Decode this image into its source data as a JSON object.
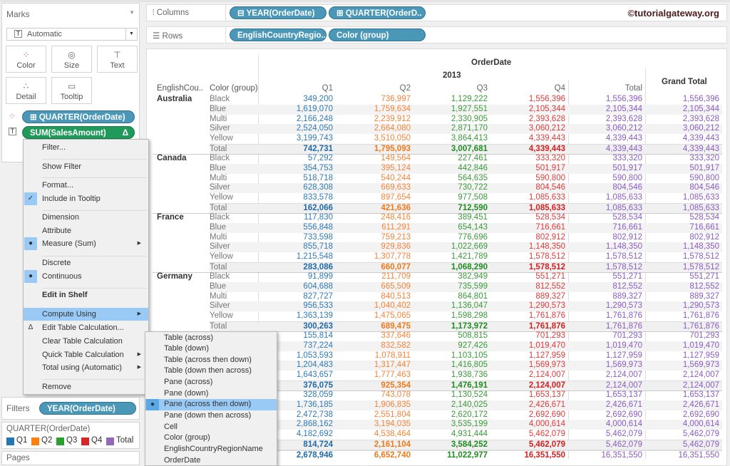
{
  "marks": {
    "title": "Marks",
    "type": "Automatic",
    "buttons": [
      "Color",
      "Size",
      "Text",
      "Detail",
      "Tooltip"
    ],
    "pills": [
      "QUARTER(OrderDate)",
      "SUM(SalesAmount)"
    ],
    "delta": "Δ"
  },
  "filters": {
    "title": "Filters",
    "pill": "YEAR(OrderDate)"
  },
  "legend": {
    "title": "QUARTER(OrderDate)",
    "items": [
      {
        "label": "Q1",
        "color": "#1f77b4"
      },
      {
        "label": "Q2",
        "color": "#ff7f0e"
      },
      {
        "label": "Q3",
        "color": "#2ca02c"
      },
      {
        "label": "Q4",
        "color": "#d62728"
      },
      {
        "label": "Total",
        "color": "#9467bd"
      }
    ]
  },
  "pages": {
    "title": "Pages"
  },
  "shelves": {
    "columns_label": "Columns",
    "columns": [
      "YEAR(OrderDate)",
      "QUARTER(OrderD.."
    ],
    "rows_label": "Rows",
    "rows": [
      "EnglishCountryRegio..",
      "Color (group)"
    ]
  },
  "watermark": "©tutorialgateway.org",
  "table": {
    "header": {
      "orderdate": "OrderDate",
      "year": "2013",
      "grand_total": "Grand Total",
      "country_col": "EnglishCou..",
      "color_col": "Color (group)",
      "cols": [
        "Q1",
        "Q2",
        "Q3",
        "Q4",
        "Total"
      ]
    },
    "colors": [
      "#2f7ab7",
      "#f5843a",
      "#3a9a3a",
      "#e03a3a",
      "#8a5cc0",
      "#8a5cc0"
    ],
    "total_colors": [
      "#1f6aa8",
      "#f07a1a",
      "#1f8c1f",
      "#d41f1f",
      "#8a5cc0",
      "#8a5cc0"
    ],
    "groups": [
      {
        "country": "Australia",
        "rows": [
          [
            "Black",
            "349,200",
            "736,997",
            "1,129,222",
            "1,556,396",
            "1,556,396",
            "1,556,396"
          ],
          [
            "Blue",
            "1,619,070",
            "1,759,634",
            "1,927,551",
            "2,105,344",
            "2,105,344",
            "2,105,344"
          ],
          [
            "Multi",
            "2,166,248",
            "2,239,912",
            "2,330,905",
            "2,393,628",
            "2,393,628",
            "2,393,628"
          ],
          [
            "Silver",
            "2,524,050",
            "2,664,080",
            "2,871,170",
            "3,060,212",
            "3,060,212",
            "3,060,212"
          ],
          [
            "Yellow",
            "3,199,743",
            "3,510,050",
            "3,864,413",
            "4,339,443",
            "4,339,443",
            "4,339,443"
          ],
          [
            "Total",
            "742,731",
            "1,795,093",
            "3,007,681",
            "4,339,443",
            "4,339,443",
            "4,339,443"
          ]
        ]
      },
      {
        "country": "Canada",
        "rows": [
          [
            "Black",
            "57,292",
            "149,564",
            "227,461",
            "333,320",
            "333,320",
            "333,320"
          ],
          [
            "Blue",
            "354,753",
            "395,124",
            "442,846",
            "501,917",
            "501,917",
            "501,917"
          ],
          [
            "Multi",
            "518,718",
            "540,244",
            "564,635",
            "590,800",
            "590,800",
            "590,800"
          ],
          [
            "Silver",
            "628,308",
            "669,633",
            "730,722",
            "804,546",
            "804,546",
            "804,546"
          ],
          [
            "Yellow",
            "833,578",
            "897,654",
            "977,508",
            "1,085,633",
            "1,085,633",
            "1,085,633"
          ],
          [
            "Total",
            "162,066",
            "421,636",
            "712,590",
            "1,085,633",
            "1,085,633",
            "1,085,633"
          ]
        ]
      },
      {
        "country": "France",
        "rows": [
          [
            "Black",
            "117,830",
            "248,416",
            "389,451",
            "528,534",
            "528,534",
            "528,534"
          ],
          [
            "Blue",
            "556,848",
            "611,291",
            "654,143",
            "716,661",
            "716,661",
            "716,661"
          ],
          [
            "Multi",
            "733,598",
            "759,213",
            "776,696",
            "802,912",
            "802,912",
            "802,912"
          ],
          [
            "Silver",
            "855,718",
            "929,836",
            "1,022,669",
            "1,148,350",
            "1,148,350",
            "1,148,350"
          ],
          [
            "Yellow",
            "1,215,548",
            "1,307,778",
            "1,421,789",
            "1,578,512",
            "1,578,512",
            "1,578,512"
          ],
          [
            "Total",
            "283,086",
            "660,077",
            "1,068,290",
            "1,578,512",
            "1,578,512",
            "1,578,512"
          ]
        ]
      },
      {
        "country": "Germany",
        "rows": [
          [
            "Black",
            "91,899",
            "211,709",
            "382,949",
            "551,271",
            "551,271",
            "551,271"
          ],
          [
            "Blue",
            "604,688",
            "665,509",
            "735,599",
            "812,552",
            "812,552",
            "812,552"
          ],
          [
            "Multi",
            "827,727",
            "840,513",
            "864,801",
            "889,327",
            "889,327",
            "889,327"
          ],
          [
            "Silver",
            "956,533",
            "1,040,402",
            "1,136,047",
            "1,290,573",
            "1,290,573",
            "1,290,573"
          ],
          [
            "Yellow",
            "1,363,139",
            "1,475,065",
            "1,598,298",
            "1,761,876",
            "1,761,876",
            "1,761,876"
          ],
          [
            "Total",
            "300,263",
            "689,475",
            "1,173,972",
            "1,761,876",
            "1,761,876",
            "1,761,876"
          ]
        ]
      },
      {
        "country": "",
        "rows": [
          [
            "",
            "155,814",
            "337,646",
            "508,815",
            "701,293",
            "701,293",
            "701,293"
          ],
          [
            "",
            "737,224",
            "832,582",
            "927,426",
            "1,019,470",
            "1,019,470",
            "1,019,470"
          ],
          [
            "",
            "1,053,593",
            "1,078,911",
            "1,103,105",
            "1,127,959",
            "1,127,959",
            "1,127,959"
          ],
          [
            "",
            "1,204,483",
            "1,317,447",
            "1,416,805",
            "1,569,973",
            "1,569,973",
            "1,569,973"
          ],
          [
            "",
            "1,643,657",
            "1,777,463",
            "1,938,736",
            "2,124,007",
            "2,124,007",
            "2,124,007"
          ],
          [
            "",
            "376,075",
            "925,354",
            "1,476,191",
            "2,124,007",
            "2,124,007",
            "2,124,007"
          ]
        ]
      },
      {
        "country": "",
        "rows": [
          [
            "",
            "328,059",
            "743,078",
            "1,130,524",
            "1,653,137",
            "1,653,137",
            "1,653,137"
          ],
          [
            "",
            "1,736,185",
            "1,906,835",
            "2,140,025",
            "2,426,671",
            "2,426,671",
            "2,426,671"
          ],
          [
            "",
            "2,472,738",
            "2,551,804",
            "2,620,172",
            "2,692,690",
            "2,692,690",
            "2,692,690"
          ],
          [
            "",
            "2,868,162",
            "3,194,035",
            "3,535,199",
            "4,000,614",
            "4,000,614",
            "4,000,614"
          ],
          [
            "",
            "4,182,692",
            "4,538,464",
            "4,931,444",
            "5,462,079",
            "5,462,079",
            "5,462,079"
          ],
          [
            "",
            "814,724",
            "2,161,104",
            "3,584,252",
            "5,462,079",
            "5,462,079",
            "5,462,079"
          ]
        ]
      }
    ],
    "grand_total_row": [
      "2,678,946",
      "6,652,740",
      "11,022,977",
      "16,351,550",
      "16,351,550",
      "16,351,550"
    ]
  },
  "context_menu": {
    "items": [
      "Filter...",
      "Show Filter",
      "Format...",
      "Include in Tooltip",
      "Dimension",
      "Attribute",
      "Measure (Sum)",
      "Discrete",
      "Continuous",
      "Edit in Shelf",
      "Compute Using",
      "Edit Table Calculation...",
      "Clear Table Calculation",
      "Quick Table Calculation",
      "Total using (Automatic)",
      "Remove"
    ]
  },
  "submenu": {
    "items": [
      "Table (across)",
      "Table (down)",
      "Table (across then down)",
      "Table (down then across)",
      "Pane (across)",
      "Pane (down)",
      "Pane (across then down)",
      "Pane (down then across)",
      "Cell",
      "Color (group)",
      "EnglishCountryRegionName",
      "OrderDate"
    ],
    "selected": 6
  }
}
